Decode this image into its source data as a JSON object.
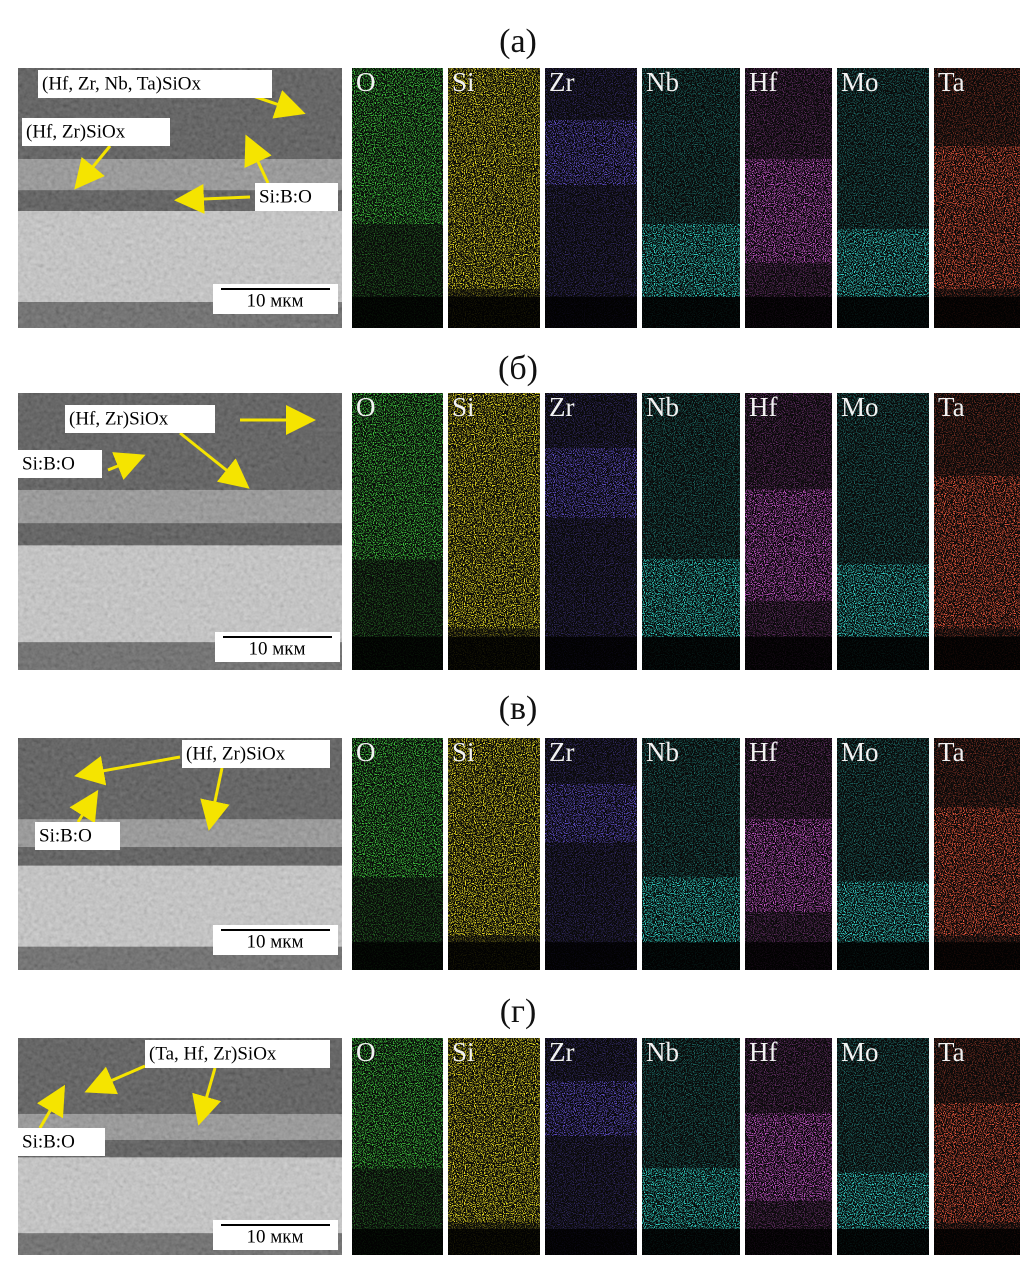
{
  "figure": {
    "panels": [
      {
        "label": "(а)",
        "sem": {
          "annotations": [
            "(Hf, Zr, Nb, Ta)SiOx",
            "(Hf, Zr)SiOx",
            "Si:B:O"
          ],
          "scale_bar": "10 мкм"
        },
        "maps": [
          "O",
          "Si",
          "Zr",
          "Nb",
          "Hf",
          "Mo",
          "Ta"
        ]
      },
      {
        "label": "(б)",
        "sem": {
          "annotations": [
            "(Hf, Zr)SiOx",
            "Si:B:O"
          ],
          "scale_bar": "10 мкм"
        },
        "maps": [
          "O",
          "Si",
          "Zr",
          "Nb",
          "Hf",
          "Mo",
          "Ta"
        ]
      },
      {
        "label": "(в)",
        "sem": {
          "annotations": [
            "(Hf, Zr)SiOx",
            "Si:B:O"
          ],
          "scale_bar": "10 мкм"
        },
        "maps": [
          "O",
          "Si",
          "Zr",
          "Nb",
          "Hf",
          "Mo",
          "Ta"
        ]
      },
      {
        "label": "(г)",
        "sem": {
          "annotations": [
            "(Ta, Hf, Zr)SiOx",
            "Si:B:O"
          ],
          "scale_bar": "10 мкм"
        },
        "maps": [
          "O",
          "Si",
          "Zr",
          "Nb",
          "Hf",
          "Mo",
          "Ta"
        ]
      }
    ]
  }
}
